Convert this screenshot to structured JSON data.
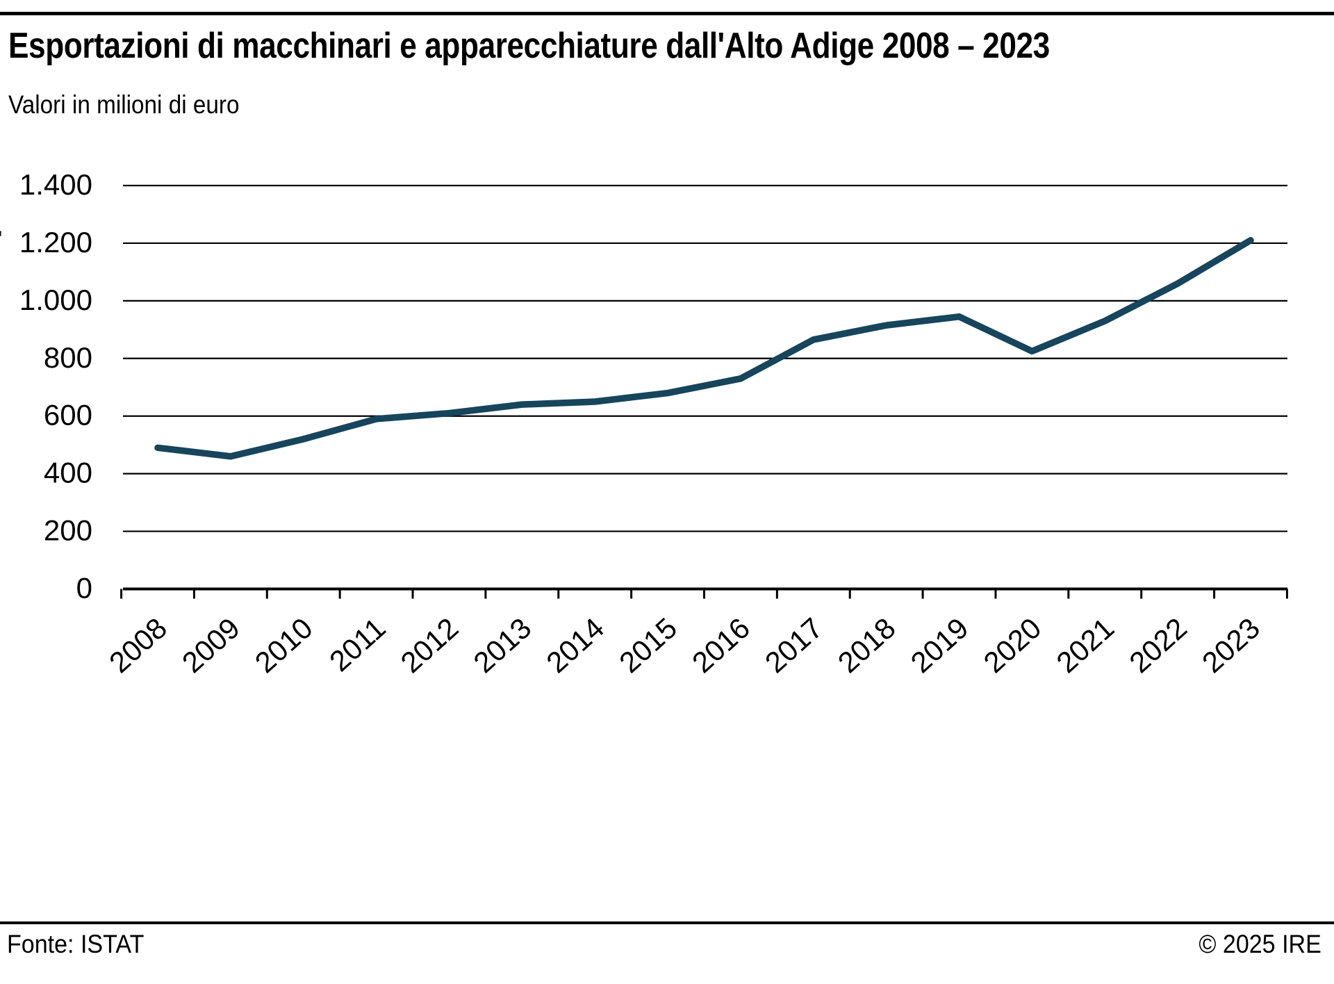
{
  "header": {
    "title": "Esportazioni di macchinari e apparecchiature dall'Alto Adige 2008 – 2023",
    "subtitle": "Valori in milioni di euro"
  },
  "footer": {
    "source": "Fonte: ISTAT",
    "copyright": "© 2025 IRE"
  },
  "misc": {
    "stray_mark": "'"
  },
  "chart_data": {
    "type": "line",
    "title": "Esportazioni di macchinari e apparecchiature dall'Alto Adige 2008 – 2023",
    "subtitle": "Valori in milioni di euro",
    "categories": [
      "2008",
      "2009",
      "2010",
      "2011",
      "2012",
      "2013",
      "2014",
      "2015",
      "2016",
      "2017",
      "2018",
      "2019",
      "2020",
      "2021",
      "2022",
      "2023"
    ],
    "values": [
      490,
      460,
      520,
      590,
      610,
      640,
      650,
      680,
      730,
      865,
      915,
      945,
      825,
      930,
      1060,
      1210
    ],
    "unit": "milioni di euro",
    "xlabel": "",
    "ylabel": "",
    "ylim": [
      0,
      1400
    ],
    "yticks": [
      0,
      200,
      400,
      600,
      800,
      1000,
      1200,
      1400
    ],
    "ytick_labels": [
      "0",
      "200",
      "400",
      "600",
      "800",
      "1.000",
      "1.200",
      "1.400"
    ],
    "grid": "horizontal",
    "legend": "none",
    "line_color": "#16455c",
    "axis_color": "#000000"
  }
}
